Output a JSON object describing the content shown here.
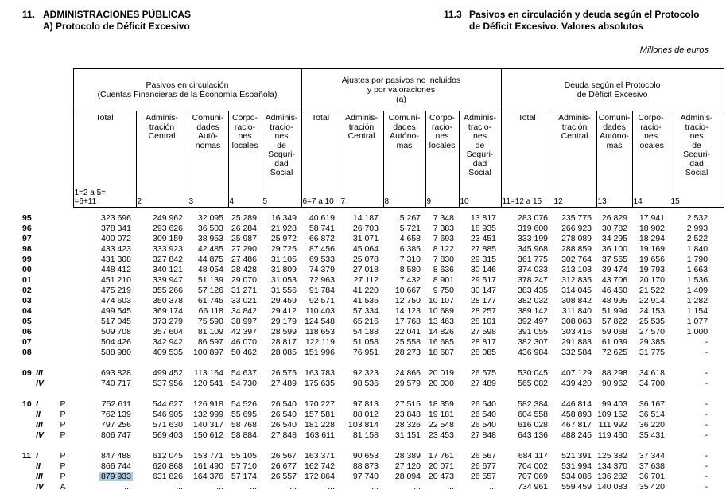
{
  "page": {
    "section_number": "11.",
    "section_title": "ADMINISTRACIONES PÚBLICAS",
    "section_subtitle": "A) Protocolo de Déficit Excesivo",
    "table_number": "11.3",
    "table_title_line1": "Pasivos en circulación y deuda según el Protocolo",
    "table_title_line2": "de Déficit Excesivo. Valores absolutos",
    "units_note": "Millones de euros"
  },
  "table": {
    "highlight_color": "#afccdf",
    "groups": [
      {
        "title": "Pasivos en circulación\n(Cuentas Financieras de la Economía Española)",
        "span": 5
      },
      {
        "title": "Ajustes por pasivos no incluidos\ny por valoraciones\n(a)",
        "span": 5
      },
      {
        "title": "Deuda según el Protocolo\nde Déficit Excesivo",
        "span": 5
      }
    ],
    "columns": [
      {
        "label": "Total",
        "num": "1=2 a 5=\n=6+11"
      },
      {
        "label": "Adminis-\ntración\nCentral",
        "num": "2"
      },
      {
        "label": "Comuni-\ndades\nAutó-\nnomas",
        "num": "3"
      },
      {
        "label": "Corpo-\nracio-\nnes\nlocales",
        "num": "4"
      },
      {
        "label": "Adminis-\ntracio-\nnes\nde\nSeguri-\ndad\nSocial",
        "num": "5"
      },
      {
        "label": "Total",
        "num": "6=7 a 10"
      },
      {
        "label": "Adminis-\ntración\nCentral",
        "num": "7"
      },
      {
        "label": "Comuni-\ndades\nAutóno-\nmas",
        "num": "8"
      },
      {
        "label": "Corpo-\nracio-\nnes\nlocales",
        "num": "9"
      },
      {
        "label": "Adminis-\ntracio-\nnes\nde\nSeguri-\ndad\nSocial",
        "num": "10"
      },
      {
        "label": "Total",
        "num": "11=12 a 15"
      },
      {
        "label": "Adminis-\ntración\nCentral",
        "num": "12"
      },
      {
        "label": "Comuni-\ndades\nAutóno-\nmas",
        "num": "13"
      },
      {
        "label": "Corpo-\nracio-\nnes\nlocales",
        "num": "14"
      },
      {
        "label": "Adminis-\ntracio-\nnes\nde\nSeguri-\ndad\nSocial",
        "num": "15"
      }
    ],
    "rows": [
      {
        "y": "95",
        "q": "",
        "s": "",
        "v": [
          "323 696",
          "249 962",
          "32 095",
          "25 289",
          "16 349",
          "40 619",
          "14 187",
          "5 267",
          "7 348",
          "13 817",
          "283 076",
          "235 775",
          "26 829",
          "17 941",
          "2 532"
        ]
      },
      {
        "y": "96",
        "q": "",
        "s": "",
        "v": [
          "378 341",
          "293 626",
          "36 503",
          "26 284",
          "21 928",
          "58 741",
          "26 703",
          "5 721",
          "7 383",
          "18 935",
          "319 600",
          "266 923",
          "30 782",
          "18 902",
          "2 993"
        ]
      },
      {
        "y": "97",
        "q": "",
        "s": "",
        "v": [
          "400 072",
          "309 159",
          "38 953",
          "25 987",
          "25 972",
          "66 872",
          "31 071",
          "4 658",
          "7 693",
          "23 451",
          "333 199",
          "278 089",
          "34 295",
          "18 294",
          "2 522"
        ]
      },
      {
        "y": "98",
        "q": "",
        "s": "",
        "v": [
          "433 423",
          "333 923",
          "42 485",
          "27 290",
          "29 725",
          "87 456",
          "45 064",
          "6 385",
          "8 122",
          "27 885",
          "345 968",
          "288 859",
          "36 100",
          "19 169",
          "1 840"
        ]
      },
      {
        "y": "99",
        "q": "",
        "s": "",
        "v": [
          "431 308",
          "327 842",
          "44 875",
          "27 486",
          "31 105",
          "69 533",
          "25 078",
          "7 310",
          "7 830",
          "29 315",
          "361 775",
          "302 764",
          "37 565",
          "19 656",
          "1 790"
        ]
      },
      {
        "y": "00",
        "q": "",
        "s": "",
        "v": [
          "448 412",
          "340 121",
          "48 054",
          "28 428",
          "31 809",
          "74 379",
          "27 018",
          "8 580",
          "8 636",
          "30 146",
          "374 033",
          "313 103",
          "39 474",
          "19 793",
          "1 663"
        ]
      },
      {
        "y": "01",
        "q": "",
        "s": "",
        "v": [
          "451 210",
          "339 947",
          "51 139",
          "29 070",
          "31 053",
          "72 963",
          "27 112",
          "7 432",
          "8 901",
          "29 517",
          "378 247",
          "312 835",
          "43 706",
          "20 170",
          "1 536"
        ]
      },
      {
        "y": "02",
        "q": "",
        "s": "",
        "v": [
          "475 219",
          "355 266",
          "57 126",
          "31 271",
          "31 556",
          "91 784",
          "41 220",
          "10 667",
          "9 750",
          "30 147",
          "383 435",
          "314 045",
          "46 460",
          "21 522",
          "1 409"
        ]
      },
      {
        "y": "03",
        "q": "",
        "s": "",
        "v": [
          "474 603",
          "350 378",
          "61 745",
          "33 021",
          "29 459",
          "92 571",
          "41 536",
          "12 750",
          "10 107",
          "28 177",
          "382 032",
          "308 842",
          "48 995",
          "22 914",
          "1 282"
        ]
      },
      {
        "y": "04",
        "q": "",
        "s": "",
        "v": [
          "499 545",
          "369 174",
          "66 118",
          "34 842",
          "29 412",
          "110 403",
          "57 334",
          "14 123",
          "10 689",
          "28 257",
          "389 142",
          "311 840",
          "51 994",
          "24 153",
          "1 154"
        ]
      },
      {
        "y": "05",
        "q": "",
        "s": "",
        "v": [
          "517 045",
          "373 279",
          "75 590",
          "38 997",
          "29 179",
          "124 548",
          "65 216",
          "17 768",
          "13 463",
          "28 101",
          "392 497",
          "308 063",
          "57 822",
          "25 535",
          "1 077"
        ]
      },
      {
        "y": "06",
        "q": "",
        "s": "",
        "v": [
          "509 708",
          "357 604",
          "81 109",
          "42 397",
          "28 599",
          "118 653",
          "54 188",
          "22 041",
          "14 826",
          "27 598",
          "391 055",
          "303 416",
          "59 068",
          "27 570",
          "1 000"
        ]
      },
      {
        "y": "07",
        "q": "",
        "s": "",
        "v": [
          "504 426",
          "342 942",
          "86 597",
          "46 070",
          "28 817",
          "122 119",
          "51 058",
          "25 558",
          "16 685",
          "28 817",
          "382 307",
          "291 883",
          "61 039",
          "29 385",
          "-"
        ]
      },
      {
        "y": "08",
        "q": "",
        "s": "",
        "v": [
          "588 980",
          "409 535",
          "100 897",
          "50 462",
          "28 085",
          "151 996",
          "76 951",
          "28 273",
          "18 687",
          "28 085",
          "436 984",
          "332 584",
          "72 625",
          "31 775",
          "-"
        ]
      },
      {
        "y": "09",
        "q": "III",
        "s": "",
        "gap_before": true,
        "v": [
          "693 828",
          "499 452",
          "113 164",
          "54 637",
          "26 575",
          "163 783",
          "92 323",
          "24 866",
          "20 019",
          "26 575",
          "530 045",
          "407 129",
          "88 298",
          "34 618",
          "-"
        ]
      },
      {
        "y": "",
        "q": "IV",
        "s": "",
        "v": [
          "740 717",
          "537 956",
          "120 541",
          "54 730",
          "27 489",
          "175 635",
          "98 536",
          "29 579",
          "20 030",
          "27 489",
          "565 082",
          "439 420",
          "90 962",
          "34 700",
          "-"
        ]
      },
      {
        "y": "10",
        "q": "I",
        "s": "P",
        "gap_before": true,
        "v": [
          "752 611",
          "544 627",
          "126 918",
          "54 526",
          "26 540",
          "170 227",
          "97 813",
          "27 515",
          "18 359",
          "26 540",
          "582 384",
          "446 814",
          "99 403",
          "36 167",
          "-"
        ]
      },
      {
        "y": "",
        "q": "II",
        "s": "P",
        "v": [
          "762 139",
          "546 905",
          "132 999",
          "55 695",
          "26 540",
          "157 581",
          "88 012",
          "23 848",
          "19 181",
          "26 540",
          "604 558",
          "458 893",
          "109 152",
          "36 514",
          "-"
        ]
      },
      {
        "y": "",
        "q": "III",
        "s": "P",
        "v": [
          "797 256",
          "571 630",
          "140 317",
          "58 768",
          "26 540",
          "181 228",
          "103 814",
          "28 326",
          "22 548",
          "26 540",
          "616 028",
          "467 817",
          "111 992",
          "36 220",
          "-"
        ]
      },
      {
        "y": "",
        "q": "IV",
        "s": "P",
        "v": [
          "806 747",
          "569 403",
          "150 612",
          "58 884",
          "27 848",
          "163 611",
          "81 158",
          "31 151",
          "23 453",
          "27 848",
          "643 136",
          "488 245",
          "119 460",
          "35 431",
          "-"
        ]
      },
      {
        "y": "11",
        "q": "I",
        "s": "P",
        "gap_before": true,
        "v": [
          "847 488",
          "612 045",
          "153 771",
          "55 105",
          "26 567",
          "163 371",
          "90 653",
          "28 389",
          "17 761",
          "26 567",
          "684 117",
          "521 391",
          "125 382",
          "37 344",
          "-"
        ]
      },
      {
        "y": "",
        "q": "II",
        "s": "P",
        "v": [
          "866 744",
          "620 868",
          "161 490",
          "57 710",
          "26 677",
          "162 742",
          "88 873",
          "27 120",
          "20 071",
          "26 677",
          "704 002",
          "531 994",
          "134 370",
          "37 638",
          "-"
        ]
      },
      {
        "y": "",
        "q": "III",
        "s": "P",
        "hl": 0,
        "v": [
          "879 933",
          "631 826",
          "164 376",
          "57 174",
          "26 557",
          "172 864",
          "97 740",
          "28 094",
          "20 473",
          "26 557",
          "707 069",
          "534 086",
          "136 282",
          "36 701",
          "-"
        ]
      },
      {
        "y": "",
        "q": "IV",
        "s": "A",
        "v": [
          "...",
          "...",
          "...",
          "...",
          "...",
          "...",
          "...",
          "...",
          "...",
          "...",
          "734 961",
          "559 459",
          "140 083",
          "35 420",
          "-"
        ]
      }
    ]
  }
}
